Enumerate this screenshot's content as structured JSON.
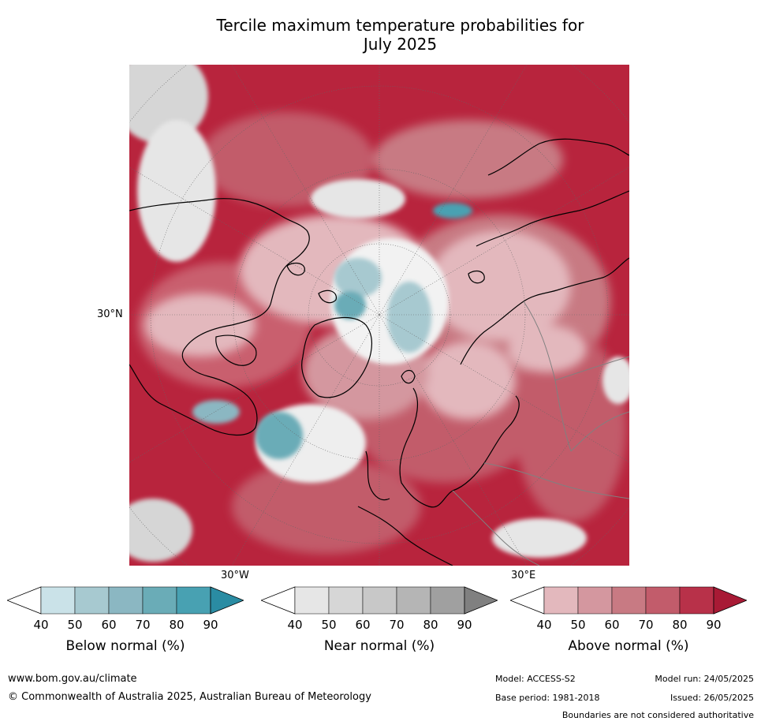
{
  "title_line1": "Tercile maximum temperature probabilities for",
  "title_line2": "July 2025",
  "map": {
    "lat_label": "30°N",
    "lon_label_left": "30°W",
    "lon_label_right": "30°E"
  },
  "colorbars": [
    {
      "label": "Below normal (%)",
      "ticks": [
        "40",
        "50",
        "60",
        "70",
        "80",
        "90"
      ],
      "colors": [
        "#ffffff",
        "#cae2e8",
        "#a7c9d0",
        "#8bb7c2",
        "#6aacb7",
        "#48a1b2",
        "#2a8ca3"
      ]
    },
    {
      "label": "Near normal (%)",
      "ticks": [
        "40",
        "50",
        "60",
        "70",
        "80",
        "90"
      ],
      "colors": [
        "#ffffff",
        "#e6e6e6",
        "#d6d6d6",
        "#c8c8c8",
        "#b5b5b5",
        "#a0a0a0",
        "#808080"
      ]
    },
    {
      "label": "Above normal (%)",
      "ticks": [
        "40",
        "50",
        "60",
        "70",
        "80",
        "90"
      ],
      "colors": [
        "#ffffff",
        "#e3b8bd",
        "#d4979f",
        "#c87a83",
        "#c25c6b",
        "#b83149",
        "#a81a35"
      ]
    }
  ],
  "footer": {
    "website": "www.bom.gov.au/climate",
    "copyright": "© Commonwealth of Australia 2025, Australian Bureau of Meteorology",
    "model": "Model: ACCESS-S2",
    "model_run": "Model run: 24/05/2025",
    "base_period": "Base period: 1981-2018",
    "issued": "Issued: 26/05/2025",
    "disclaimer": "Boundaries are not considered authoritative"
  }
}
